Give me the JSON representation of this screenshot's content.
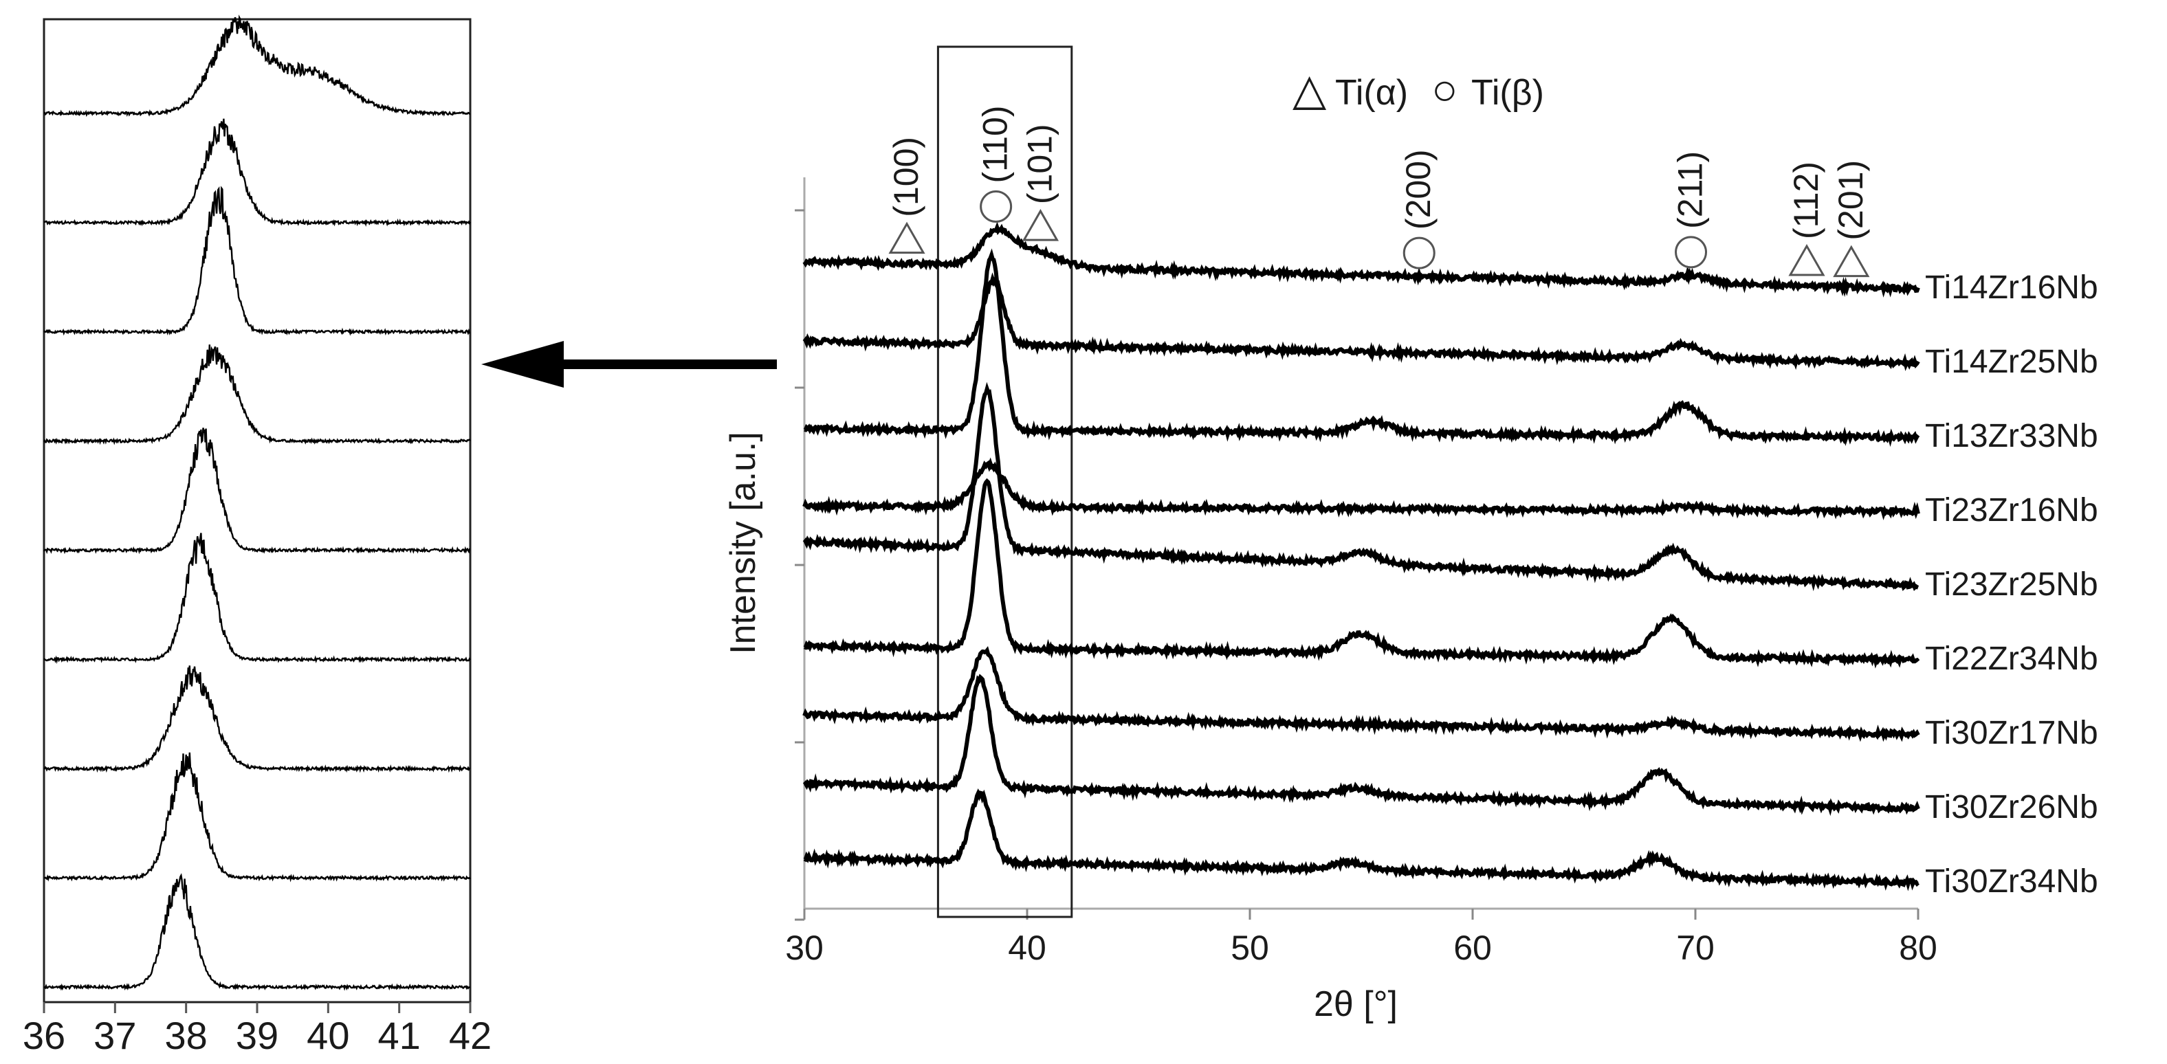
{
  "chart_data": [
    {
      "type": "line",
      "panel": "main",
      "title": "",
      "xlabel": "2θ [°]",
      "ylabel": "Intensity [a.u.]",
      "xlim": [
        30,
        80
      ],
      "x_ticks": [
        "30",
        "40",
        "50",
        "60",
        "70",
        "80"
      ],
      "grid": false,
      "legend": [
        {
          "symbol": "△",
          "label": "Ti(α)"
        },
        {
          "symbol": "○",
          "label": "Ti(β)"
        }
      ],
      "highlight_range": [
        36,
        42
      ],
      "peak_annotations": [
        {
          "symbol": "△",
          "phase": "Ti(α)",
          "hkl": "(100)",
          "x": 34.6
        },
        {
          "symbol": "○",
          "phase": "Ti(β)",
          "hkl": "(110)",
          "x": 38.6
        },
        {
          "symbol": "△",
          "phase": "Ti(α)",
          "hkl": "(101)",
          "x": 40.6
        },
        {
          "symbol": "○",
          "phase": "Ti(β)",
          "hkl": "(200)",
          "x": 57.6
        },
        {
          "symbol": "○",
          "phase": "Ti(β)",
          "hkl": "(211)",
          "x": 69.8
        },
        {
          "symbol": "△",
          "phase": "Ti(α)",
          "hkl": "(112)",
          "x": 75.0
        },
        {
          "symbol": "△",
          "phase": "Ti(α)",
          "hkl": "(201)",
          "x": 77.0
        }
      ],
      "series": [
        {
          "name": "Ti14Zr16Nb",
          "peaks": [
            {
              "x": 38.6,
              "h": 0.4,
              "w": 0.7
            },
            {
              "x": 40.2,
              "h": 0.22,
              "w": 1.1
            },
            {
              "x": 69.8,
              "h": 0.1,
              "w": 0.8
            }
          ],
          "base": 0,
          "slope": 0.5
        },
        {
          "name": "Ti14Zr25Nb",
          "peaks": [
            {
              "x": 38.5,
              "h": 0.85,
              "w": 0.45
            },
            {
              "x": 69.5,
              "h": 0.18,
              "w": 0.8
            }
          ],
          "base": 1,
          "slope": 0.4
        },
        {
          "name": "Ti13Zr33Nb",
          "peaks": [
            {
              "x": 38.4,
              "h": 2.3,
              "w": 0.45
            },
            {
              "x": 55.5,
              "h": 0.15,
              "w": 0.8
            },
            {
              "x": 69.5,
              "h": 0.4,
              "w": 0.8
            }
          ],
          "base": 2,
          "slope": 0.15
        },
        {
          "name": "Ti23Zr16Nb",
          "peaks": [
            {
              "x": 38.3,
              "h": 0.55,
              "w": 0.7
            },
            {
              "x": 69.5,
              "h": 0.05,
              "w": 0.8
            }
          ],
          "base": 3,
          "slope": 0.1
        },
        {
          "name": "Ti23Zr25Nb",
          "peaks": [
            {
              "x": 38.2,
              "h": 2.1,
              "w": 0.45
            },
            {
              "x": 55.0,
              "h": 0.15,
              "w": 0.8
            },
            {
              "x": 69.0,
              "h": 0.35,
              "w": 0.8
            }
          ],
          "base": 4,
          "slope": 0.8
        },
        {
          "name": "Ti22Zr34Nb",
          "peaks": [
            {
              "x": 38.2,
              "h": 2.2,
              "w": 0.45
            },
            {
              "x": 55.0,
              "h": 0.25,
              "w": 0.8
            },
            {
              "x": 68.9,
              "h": 0.5,
              "w": 0.8
            }
          ],
          "base": 5,
          "slope": 0.25
        },
        {
          "name": "Ti30Zr17Nb",
          "peaks": [
            {
              "x": 38.1,
              "h": 0.9,
              "w": 0.55
            },
            {
              "x": 69.0,
              "h": 0.1,
              "w": 0.8
            }
          ],
          "base": 6,
          "slope": 0.35
        },
        {
          "name": "Ti30Zr26Nb",
          "peaks": [
            {
              "x": 37.9,
              "h": 1.45,
              "w": 0.45
            },
            {
              "x": 54.8,
              "h": 0.1,
              "w": 0.8
            },
            {
              "x": 68.4,
              "h": 0.4,
              "w": 0.8
            }
          ],
          "base": 7,
          "slope": 0.45
        },
        {
          "name": "Ti30Zr34Nb",
          "peaks": [
            {
              "x": 37.9,
              "h": 0.9,
              "w": 0.45
            },
            {
              "x": 54.5,
              "h": 0.1,
              "w": 0.8
            },
            {
              "x": 68.2,
              "h": 0.25,
              "w": 0.8
            }
          ],
          "base": 8,
          "slope": 0.45
        }
      ]
    },
    {
      "type": "line",
      "panel": "zoom",
      "title": "",
      "xlim": [
        36,
        42
      ],
      "x_ticks": [
        "36",
        "37",
        "38",
        "39",
        "40",
        "41",
        "42"
      ],
      "grid": false,
      "series": [
        {
          "name": "Ti14Zr16Nb",
          "peaks": [
            {
              "x": 38.7,
              "h": 0.75,
              "w": 0.35
            },
            {
              "x": 39.7,
              "h": 0.4,
              "w": 0.55
            }
          ]
        },
        {
          "name": "Ti14Zr25Nb",
          "peaks": [
            {
              "x": 38.5,
              "h": 0.9,
              "w": 0.25
            }
          ]
        },
        {
          "name": "Ti13Zr33Nb",
          "peaks": [
            {
              "x": 38.45,
              "h": 1.3,
              "w": 0.18
            }
          ]
        },
        {
          "name": "Ti23Zr16Nb",
          "peaks": [
            {
              "x": 38.4,
              "h": 0.85,
              "w": 0.28
            }
          ]
        },
        {
          "name": "Ti23Zr25Nb",
          "peaks": [
            {
              "x": 38.25,
              "h": 1.1,
              "w": 0.2
            }
          ]
        },
        {
          "name": "Ti22Zr34Nb",
          "peaks": [
            {
              "x": 38.2,
              "h": 1.1,
              "w": 0.2
            }
          ]
        },
        {
          "name": "Ti30Zr17Nb",
          "peaks": [
            {
              "x": 38.1,
              "h": 0.9,
              "w": 0.28
            }
          ]
        },
        {
          "name": "Ti30Zr26Nb",
          "peaks": [
            {
              "x": 38.0,
              "h": 1.1,
              "w": 0.22
            }
          ]
        },
        {
          "name": "Ti30Zr34Nb",
          "peaks": [
            {
              "x": 37.9,
              "h": 1.0,
              "w": 0.2
            }
          ]
        }
      ]
    }
  ]
}
